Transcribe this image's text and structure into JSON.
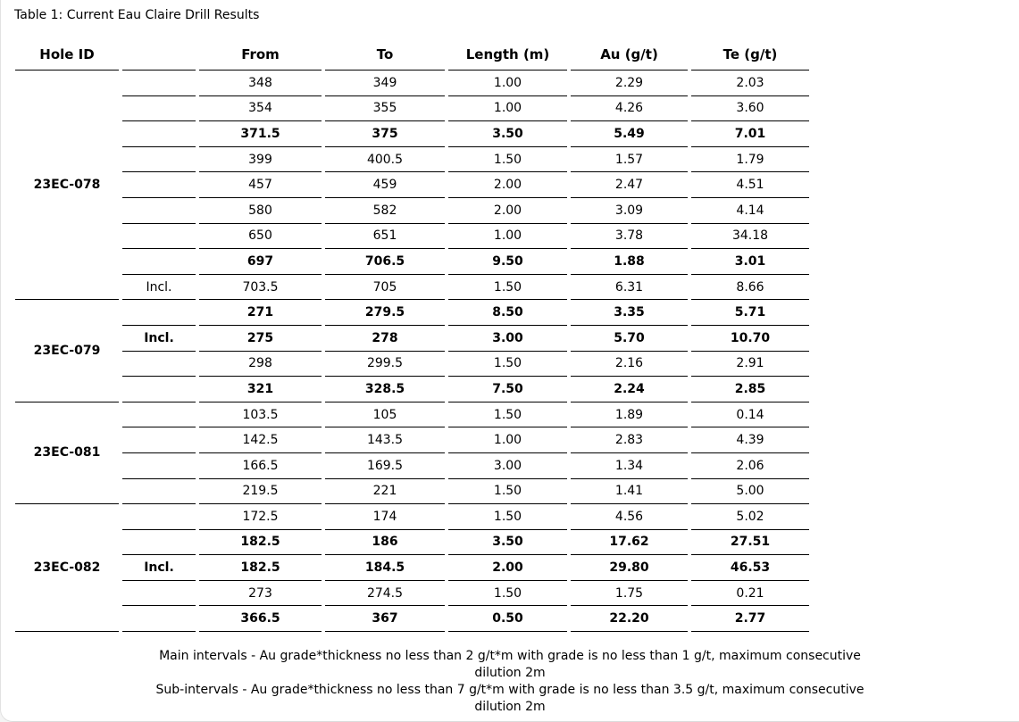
{
  "title": "Table 1: Current Eau Claire Drill Results",
  "colors": {
    "text": "#000000",
    "table_border": "#000000",
    "card_border": "#e0e0e0",
    "background": "#ffffff"
  },
  "table": {
    "columns": [
      "Hole ID",
      "",
      "From",
      "To",
      "Length (m)",
      "Au (g/t)",
      "Te (g/t)"
    ],
    "groups": [
      {
        "hole_id": "23EC-078",
        "rows": [
          {
            "incl": "",
            "from": "348",
            "to": "349",
            "length": "1.00",
            "au": "2.29",
            "te": "2.03",
            "bold": false
          },
          {
            "incl": "",
            "from": "354",
            "to": "355",
            "length": "1.00",
            "au": "4.26",
            "te": "3.60",
            "bold": false
          },
          {
            "incl": "",
            "from": "371.5",
            "to": "375",
            "length": "3.50",
            "au": "5.49",
            "te": "7.01",
            "bold": true
          },
          {
            "incl": "",
            "from": "399",
            "to": "400.5",
            "length": "1.50",
            "au": "1.57",
            "te": "1.79",
            "bold": false
          },
          {
            "incl": "",
            "from": "457",
            "to": "459",
            "length": "2.00",
            "au": "2.47",
            "te": "4.51",
            "bold": false
          },
          {
            "incl": "",
            "from": "580",
            "to": "582",
            "length": "2.00",
            "au": "3.09",
            "te": "4.14",
            "bold": false
          },
          {
            "incl": "",
            "from": "650",
            "to": "651",
            "length": "1.00",
            "au": "3.78",
            "te": "34.18",
            "bold": false
          },
          {
            "incl": "",
            "from": "697",
            "to": "706.5",
            "length": "9.50",
            "au": "1.88",
            "te": "3.01",
            "bold": true
          },
          {
            "incl": "Incl.",
            "from": "703.5",
            "to": "705",
            "length": "1.50",
            "au": "6.31",
            "te": "8.66",
            "bold": false
          }
        ]
      },
      {
        "hole_id": "23EC-079",
        "rows": [
          {
            "incl": "",
            "from": "271",
            "to": "279.5",
            "length": "8.50",
            "au": "3.35",
            "te": "5.71",
            "bold": true
          },
          {
            "incl": "Incl.",
            "from": "275",
            "to": "278",
            "length": "3.00",
            "au": "5.70",
            "te": "10.70",
            "bold": true
          },
          {
            "incl": "",
            "from": "298",
            "to": "299.5",
            "length": "1.50",
            "au": "2.16",
            "te": "2.91",
            "bold": false
          },
          {
            "incl": "",
            "from": "321",
            "to": "328.5",
            "length": "7.50",
            "au": "2.24",
            "te": "2.85",
            "bold": true
          }
        ]
      },
      {
        "hole_id": "23EC-081",
        "rows": [
          {
            "incl": "",
            "from": "103.5",
            "to": "105",
            "length": "1.50",
            "au": "1.89",
            "te": "0.14",
            "bold": false
          },
          {
            "incl": "",
            "from": "142.5",
            "to": "143.5",
            "length": "1.00",
            "au": "2.83",
            "te": "4.39",
            "bold": false
          },
          {
            "incl": "",
            "from": "166.5",
            "to": "169.5",
            "length": "3.00",
            "au": "1.34",
            "te": "2.06",
            "bold": false
          },
          {
            "incl": "",
            "from": "219.5",
            "to": "221",
            "length": "1.50",
            "au": "1.41",
            "te": "5.00",
            "bold": false
          }
        ]
      },
      {
        "hole_id": "23EC-082",
        "rows": [
          {
            "incl": "",
            "from": "172.5",
            "to": "174",
            "length": "1.50",
            "au": "4.56",
            "te": "5.02",
            "bold": false
          },
          {
            "incl": "",
            "from": "182.5",
            "to": "186",
            "length": "3.50",
            "au": "17.62",
            "te": "27.51",
            "bold": true
          },
          {
            "incl": "Incl.",
            "from": "182.5",
            "to": "184.5",
            "length": "2.00",
            "au": "29.80",
            "te": "46.53",
            "bold": true
          },
          {
            "incl": "",
            "from": "273",
            "to": "274.5",
            "length": "1.50",
            "au": "1.75",
            "te": "0.21",
            "bold": false
          },
          {
            "incl": "",
            "from": "366.5",
            "to": "367",
            "length": "0.50",
            "au": "22.20",
            "te": "2.77",
            "bold": true
          }
        ]
      }
    ]
  },
  "notes": [
    "Main intervals - Au grade*thickness no less than 2 g/t*m with grade is no less than 1 g/t, maximum consecutive dilution 2m",
    "Sub-intervals - Au grade*thickness no less than 7 g/t*m with grade is no less than 3.5 g/t, maximum consecutive dilution 2m"
  ]
}
